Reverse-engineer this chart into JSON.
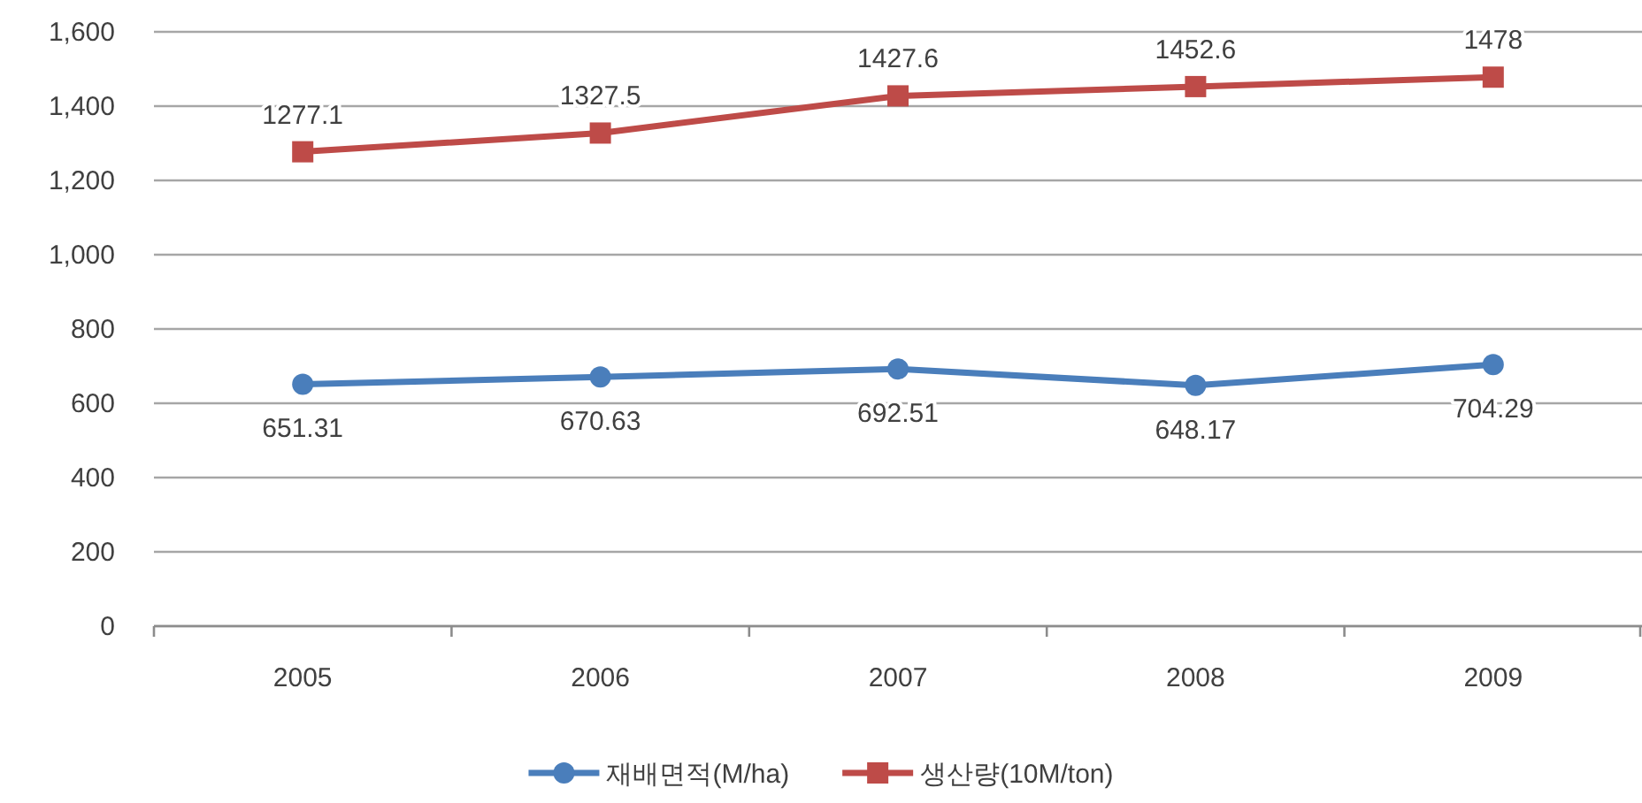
{
  "chart_data": {
    "type": "line",
    "categories": [
      "2005",
      "2006",
      "2007",
      "2008",
      "2009"
    ],
    "series": [
      {
        "name": "재배면적(M/ha)",
        "color": "#4a7ebb",
        "marker": "circle",
        "values": [
          651.31,
          670.63,
          692.51,
          648.17,
          704.29
        ]
      },
      {
        "name": "생산량(10M/ton)",
        "color": "#be4b48",
        "marker": "square",
        "values": [
          1277.1,
          1327.5,
          1427.6,
          1452.6,
          1478
        ]
      }
    ],
    "ylim": [
      0,
      1600
    ],
    "yticks": [
      0,
      200,
      400,
      600,
      800,
      {
        "value": 1000,
        "label": "1,000"
      },
      {
        "value": 1200,
        "label": "1,200"
      },
      {
        "value": 1400,
        "label": "1,400"
      },
      {
        "value": 1600,
        "label": "1,600"
      }
    ],
    "grid": "y",
    "legend": "bottom",
    "data_labels": true,
    "line_style": "solid"
  }
}
